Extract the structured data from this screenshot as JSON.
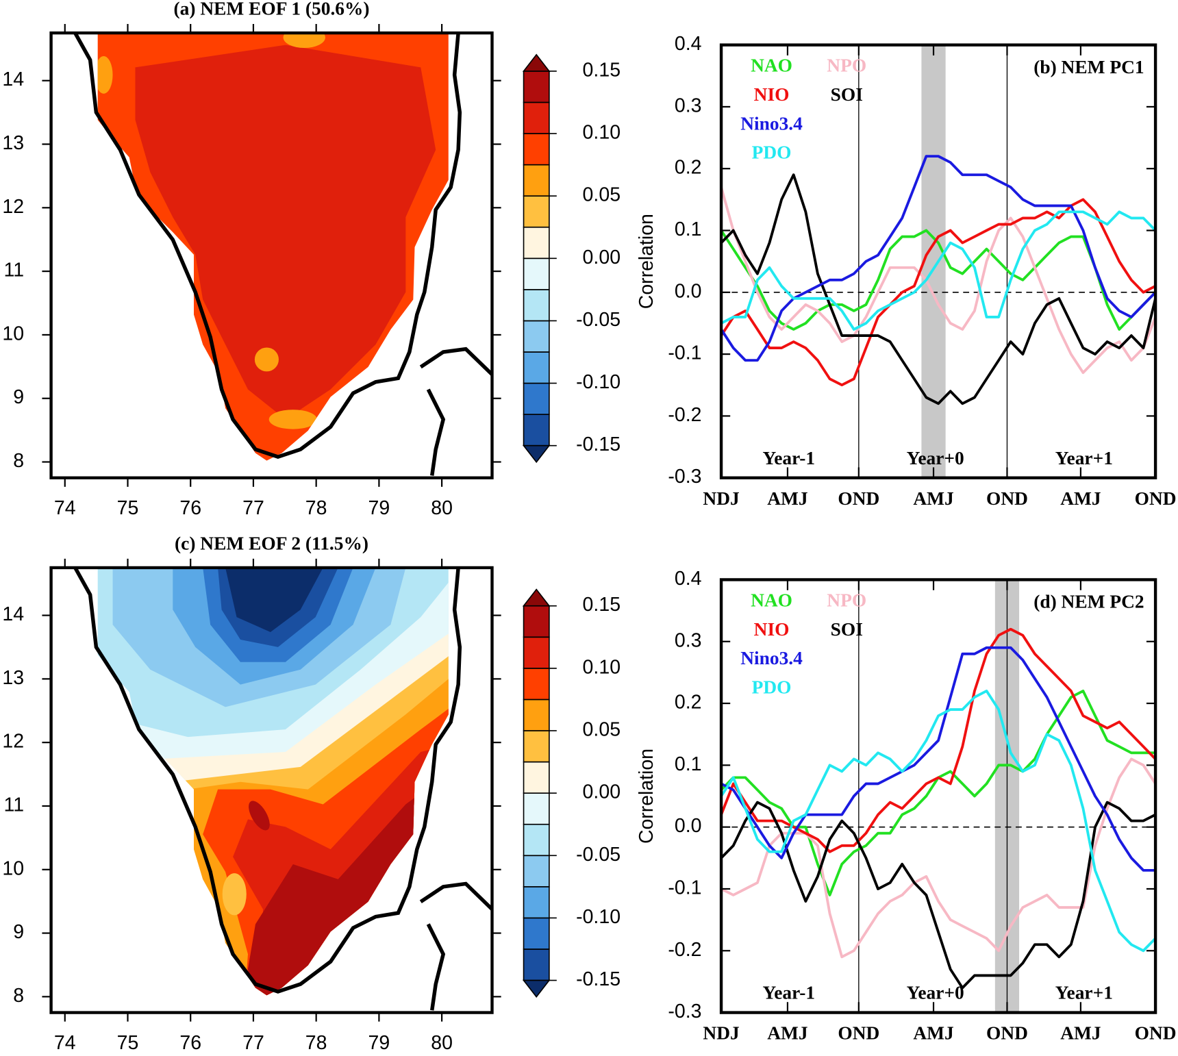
{
  "chart_data": [
    {
      "type": "map",
      "title": "(a) NEM EOF 1 (50.6%)",
      "xlim": [
        73.78,
        80.8
      ],
      "xticks": [
        74,
        75,
        76,
        77,
        78,
        79,
        80
      ],
      "ylim": [
        7.75,
        14.75
      ],
      "yticks": [
        8,
        9,
        10,
        11,
        12,
        13,
        14
      ],
      "colorbar": {
        "clim": [
          -0.15,
          0.15
        ],
        "ticks": [
          0.15,
          {
            "value": 0.1,
            "label": "0.10"
          },
          0.05,
          {
            "value": 0,
            "label": "0.00"
          },
          -0.05,
          {
            "value": -0.1,
            "label": "-0.10"
          },
          -0.15
        ],
        "colors": [
          "#0c2d6a",
          "#1a4fa0",
          "#2f78cc",
          "#5aa8e6",
          "#8ccaf0",
          "#b4e6f5",
          "#e5f8fb",
          "#fff5e0",
          "#ffc040",
          "#ffa010",
          "#ff4000",
          "#e0200c",
          "#b00d0d",
          "#8a0808"
        ]
      }
    },
    {
      "type": "line",
      "title": "(b) NEM PC1",
      "y_label": "Correlation",
      "x": [
        0,
        1,
        2,
        3,
        4,
        5,
        6,
        7,
        8,
        9,
        10,
        11,
        12,
        13,
        14,
        15,
        16,
        17,
        18,
        19,
        20,
        21,
        22,
        23,
        24,
        25,
        26,
        27,
        28,
        29,
        30,
        31,
        32,
        33,
        34,
        35,
        36
      ],
      "xlim": [
        0,
        36
      ],
      "xticks": [
        {
          "value": 0,
          "label": "NDJ"
        },
        {
          "value": 5.5,
          "label": "AMJ"
        },
        {
          "value": 11.4,
          "label": "OND"
        },
        {
          "value": 17.6,
          "label": "AMJ"
        },
        {
          "value": 23.7,
          "label": "OND"
        },
        {
          "value": 29.8,
          "label": "AMJ"
        },
        {
          "value": 36,
          "label": "OND"
        }
      ],
      "ylim": [
        -0.3,
        0.4
      ],
      "yticks": [
        0.4,
        0.3,
        0.2,
        0.1,
        {
          "value": 0,
          "label": "0.0"
        },
        -0.1,
        -0.2,
        -0.3
      ],
      "vlines": [
        11.4,
        23.7
      ],
      "shade": [
        16.6,
        18.6
      ],
      "zero_line": true,
      "annotations": [
        "Year-1",
        "Year+0",
        "Year+1"
      ],
      "series": [
        {
          "name": "NAO",
          "color": "#22e022",
          "values": [
            0.1,
            0.07,
            0.04,
            0.01,
            -0.03,
            -0.05,
            -0.06,
            -0.05,
            -0.03,
            -0.02,
            -0.02,
            -0.03,
            -0.02,
            0.02,
            0.07,
            0.09,
            0.09,
            0.1,
            0.08,
            0.04,
            0.03,
            0.05,
            0.07,
            0.05,
            0.03,
            0.02,
            0.04,
            0.06,
            0.08,
            0.09,
            0.09,
            0.04,
            -0.02,
            -0.06,
            -0.04,
            -0.02,
            0
          ]
        },
        {
          "name": "NPO",
          "color": "#f7b8c4",
          "values": [
            0.17,
            0.1,
            0.05,
            0,
            -0.04,
            -0.06,
            -0.04,
            -0.02,
            -0.03,
            -0.05,
            -0.08,
            -0.07,
            -0.04,
            0,
            0.04,
            0.04,
            0.04,
            0.02,
            -0.02,
            -0.05,
            -0.06,
            -0.03,
            0.05,
            0.1,
            0.12,
            0.09,
            0.04,
            -0.01,
            -0.06,
            -0.1,
            -0.13,
            -0.11,
            -0.09,
            -0.08,
            -0.11,
            -0.09,
            -0.04
          ]
        },
        {
          "name": "NIO",
          "color": "#f01010",
          "values": [
            -0.07,
            -0.04,
            -0.03,
            -0.06,
            -0.09,
            -0.09,
            -0.08,
            -0.09,
            -0.11,
            -0.14,
            -0.15,
            -0.14,
            -0.09,
            -0.04,
            -0.02,
            0,
            0.01,
            0.06,
            0.09,
            0.1,
            0.08,
            0.09,
            0.1,
            0.11,
            0.11,
            0.12,
            0.12,
            0.13,
            0.12,
            0.14,
            0.15,
            0.13,
            0.09,
            0.05,
            0.02,
            0,
            0.01
          ]
        },
        {
          "name": "SOI",
          "color": "#000000",
          "values": [
            0.08,
            0.1,
            0.06,
            0.03,
            0.08,
            0.15,
            0.19,
            0.13,
            0.03,
            -0.02,
            -0.07,
            -0.07,
            -0.07,
            -0.07,
            -0.08,
            -0.11,
            -0.14,
            -0.17,
            -0.18,
            -0.16,
            -0.18,
            -0.17,
            -0.14,
            -0.11,
            -0.08,
            -0.1,
            -0.05,
            -0.02,
            -0.01,
            -0.05,
            -0.09,
            -0.1,
            -0.08,
            -0.09,
            -0.07,
            -0.09,
            -0.01
          ]
        },
        {
          "name": "Nino3.4",
          "color": "#1a1ae0",
          "values": [
            -0.06,
            -0.09,
            -0.11,
            -0.11,
            -0.08,
            -0.03,
            -0.01,
            0,
            0.01,
            0.02,
            0.02,
            0.03,
            0.05,
            0.06,
            0.09,
            0.12,
            0.17,
            0.22,
            0.22,
            0.21,
            0.19,
            0.19,
            0.19,
            0.18,
            0.17,
            0.15,
            0.14,
            0.14,
            0.14,
            0.14,
            0.1,
            0.04,
            -0.01,
            -0.03,
            -0.04,
            -0.02,
            0
          ]
        },
        {
          "name": "PDO",
          "color": "#22e8f0",
          "values": [
            -0.05,
            -0.04,
            -0.04,
            0.02,
            0.04,
            0.01,
            -0.01,
            -0.01,
            -0.01,
            -0.01,
            -0.03,
            -0.06,
            -0.05,
            -0.03,
            -0.02,
            -0.01,
            0,
            0.02,
            0.05,
            0.08,
            0.07,
            0.04,
            -0.04,
            -0.04,
            0.02,
            0.07,
            0.1,
            0.11,
            0.13,
            0.13,
            0.13,
            0.12,
            0.11,
            0.13,
            0.12,
            0.12,
            0.1
          ]
        }
      ]
    },
    {
      "type": "map",
      "title": "(c) NEM EOF 2 (11.5%)",
      "xlim": [
        73.78,
        80.8
      ],
      "xticks": [
        74,
        75,
        76,
        77,
        78,
        79,
        80
      ],
      "ylim": [
        7.75,
        14.75
      ],
      "yticks": [
        8,
        9,
        10,
        11,
        12,
        13,
        14
      ],
      "colorbar": {
        "clim": [
          -0.15,
          0.15
        ],
        "ticks": [
          0.15,
          {
            "value": 0.1,
            "label": "0.10"
          },
          0.05,
          {
            "value": 0,
            "label": "0.00"
          },
          -0.05,
          {
            "value": -0.1,
            "label": "-0.10"
          },
          -0.15
        ],
        "colors": [
          "#0c2d6a",
          "#1a4fa0",
          "#2f78cc",
          "#5aa8e6",
          "#8ccaf0",
          "#b4e6f5",
          "#e5f8fb",
          "#fff5e0",
          "#ffc040",
          "#ffa010",
          "#ff4000",
          "#e0200c",
          "#b00d0d",
          "#8a0808"
        ]
      }
    },
    {
      "type": "line",
      "title": "(d) NEM PC2",
      "y_label": "Correlation",
      "x": [
        0,
        1,
        2,
        3,
        4,
        5,
        6,
        7,
        8,
        9,
        10,
        11,
        12,
        13,
        14,
        15,
        16,
        17,
        18,
        19,
        20,
        21,
        22,
        23,
        24,
        25,
        26,
        27,
        28,
        29,
        30,
        31,
        32,
        33,
        34,
        35,
        36
      ],
      "xlim": [
        0,
        36
      ],
      "xticks": [
        {
          "value": 0,
          "label": "NDJ"
        },
        {
          "value": 5.5,
          "label": "AMJ"
        },
        {
          "value": 11.4,
          "label": "OND"
        },
        {
          "value": 17.6,
          "label": "AMJ"
        },
        {
          "value": 23.7,
          "label": "OND"
        },
        {
          "value": 29.8,
          "label": "AMJ"
        },
        {
          "value": 36,
          "label": "OND"
        }
      ],
      "ylim": [
        -0.3,
        0.4
      ],
      "yticks": [
        0.4,
        0.3,
        0.2,
        0.1,
        {
          "value": 0,
          "label": "0.0"
        },
        -0.1,
        -0.2,
        -0.3
      ],
      "vlines": [
        11.4,
        23.7
      ],
      "shade": [
        22.7,
        24.7
      ],
      "zero_line": true,
      "annotations": [
        "Year-1",
        "Year+0",
        "Year+1"
      ],
      "series": [
        {
          "name": "NAO",
          "color": "#22e022",
          "values": [
            0.06,
            0.08,
            0.08,
            0.06,
            0.04,
            0.03,
            0,
            0,
            -0.06,
            -0.11,
            -0.06,
            -0.04,
            -0.03,
            -0.01,
            -0.01,
            0.02,
            0.03,
            0.05,
            0.08,
            0.09,
            0.07,
            0.05,
            0.07,
            0.1,
            0.1,
            0.09,
            0.11,
            0.15,
            0.18,
            0.21,
            0.22,
            0.18,
            0.14,
            0.13,
            0.12,
            0.12,
            0.12
          ]
        },
        {
          "name": "NPO",
          "color": "#f7b8c4",
          "values": [
            -0.1,
            -0.11,
            -0.1,
            -0.09,
            -0.03,
            -0.01,
            -0.01,
            -0.01,
            -0.03,
            -0.14,
            -0.21,
            -0.2,
            -0.17,
            -0.14,
            -0.12,
            -0.11,
            -0.09,
            -0.08,
            -0.12,
            -0.15,
            -0.16,
            -0.17,
            -0.18,
            -0.2,
            -0.16,
            -0.13,
            -0.12,
            -0.11,
            -0.13,
            -0.13,
            -0.13,
            -0.03,
            0.03,
            0.08,
            0.11,
            0.1,
            0.07
          ]
        },
        {
          "name": "NIO",
          "color": "#f01010",
          "values": [
            0.02,
            0.07,
            0.04,
            0.01,
            0.01,
            0.01,
            0,
            -0.01,
            -0.02,
            -0.04,
            -0.03,
            -0.03,
            -0.01,
            0.02,
            0.04,
            0.03,
            0.05,
            0.07,
            0.08,
            0.07,
            0.13,
            0.22,
            0.28,
            0.31,
            0.32,
            0.31,
            0.28,
            0.26,
            0.24,
            0.22,
            0.18,
            0.17,
            0.16,
            0.17,
            0.15,
            0.13,
            0.11
          ]
        },
        {
          "name": "SOI",
          "color": "#000000",
          "values": [
            -0.05,
            -0.03,
            0.01,
            0.04,
            0.03,
            -0.01,
            -0.07,
            -0.12,
            -0.08,
            -0.02,
            0.01,
            -0.01,
            -0.05,
            -0.1,
            -0.09,
            -0.06,
            -0.09,
            -0.11,
            -0.17,
            -0.23,
            -0.26,
            -0.24,
            -0.24,
            -0.24,
            -0.24,
            -0.22,
            -0.19,
            -0.19,
            -0.21,
            -0.19,
            -0.12,
            0,
            0.04,
            0.03,
            0.01,
            0.01,
            0.02
          ]
        },
        {
          "name": "Nino3.4",
          "color": "#1a1ae0",
          "values": [
            0.07,
            0.06,
            0.03,
            0,
            -0.03,
            -0.05,
            -0.01,
            0.02,
            0.02,
            0.02,
            0.02,
            0.05,
            0.07,
            0.07,
            0.08,
            0.09,
            0.1,
            0.12,
            0.14,
            0.21,
            0.28,
            0.28,
            0.29,
            0.29,
            0.29,
            0.27,
            0.24,
            0.21,
            0.17,
            0.13,
            0.09,
            0.05,
            0.02,
            -0.02,
            -0.05,
            -0.07,
            -0.07
          ]
        },
        {
          "name": "PDO",
          "color": "#22e8f0",
          "values": [
            0.05,
            0.08,
            0.03,
            -0.02,
            -0.04,
            -0.04,
            0.01,
            0.02,
            0.06,
            0.1,
            0.09,
            0.11,
            0.1,
            0.12,
            0.11,
            0.09,
            0.11,
            0.14,
            0.18,
            0.19,
            0.19,
            0.21,
            0.22,
            0.19,
            0.12,
            0.09,
            0.1,
            0.15,
            0.14,
            0.1,
            0.03,
            -0.07,
            -0.12,
            -0.17,
            -0.19,
            -0.2,
            -0.18
          ]
        }
      ]
    }
  ]
}
